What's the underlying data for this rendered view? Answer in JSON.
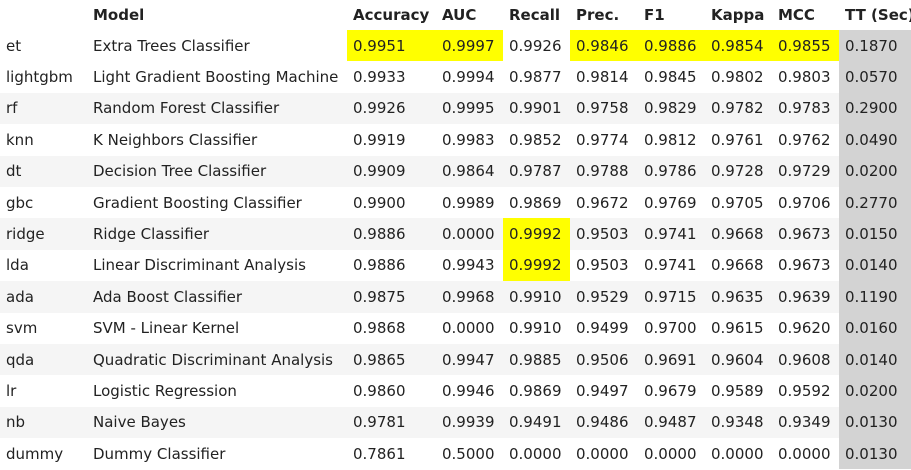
{
  "headers": [
    "",
    "Model",
    "Accuracy",
    "AUC",
    "Recall",
    "Prec.",
    "F1",
    "Kappa",
    "MCC",
    "TT (Sec)"
  ],
  "rows": [
    {
      "id": "et",
      "model": "Extra Trees Classifier",
      "values": [
        "0.9951",
        "0.9997",
        "0.9926",
        "0.9846",
        "0.9886",
        "0.9854",
        "0.9855",
        "0.1870"
      ]
    },
    {
      "id": "lightgbm",
      "model": "Light Gradient Boosting Machine",
      "values": [
        "0.9933",
        "0.9994",
        "0.9877",
        "0.9814",
        "0.9845",
        "0.9802",
        "0.9803",
        "0.0570"
      ]
    },
    {
      "id": "rf",
      "model": "Random Forest Classifier",
      "values": [
        "0.9926",
        "0.9995",
        "0.9901",
        "0.9758",
        "0.9829",
        "0.9782",
        "0.9783",
        "0.2900"
      ]
    },
    {
      "id": "knn",
      "model": "K Neighbors Classifier",
      "values": [
        "0.9919",
        "0.9983",
        "0.9852",
        "0.9774",
        "0.9812",
        "0.9761",
        "0.9762",
        "0.0490"
      ]
    },
    {
      "id": "dt",
      "model": "Decision Tree Classifier",
      "values": [
        "0.9909",
        "0.9864",
        "0.9787",
        "0.9788",
        "0.9786",
        "0.9728",
        "0.9729",
        "0.0200"
      ]
    },
    {
      "id": "gbc",
      "model": "Gradient Boosting Classifier",
      "values": [
        "0.9900",
        "0.9989",
        "0.9869",
        "0.9672",
        "0.9769",
        "0.9705",
        "0.9706",
        "0.2770"
      ]
    },
    {
      "id": "ridge",
      "model": "Ridge Classifier",
      "values": [
        "0.9886",
        "0.0000",
        "0.9992",
        "0.9503",
        "0.9741",
        "0.9668",
        "0.9673",
        "0.0150"
      ]
    },
    {
      "id": "lda",
      "model": "Linear Discriminant Analysis",
      "values": [
        "0.9886",
        "0.9943",
        "0.9992",
        "0.9503",
        "0.9741",
        "0.9668",
        "0.9673",
        "0.0140"
      ]
    },
    {
      "id": "ada",
      "model": "Ada Boost Classifier",
      "values": [
        "0.9875",
        "0.9968",
        "0.9910",
        "0.9529",
        "0.9715",
        "0.9635",
        "0.9639",
        "0.1190"
      ]
    },
    {
      "id": "svm",
      "model": "SVM - Linear Kernel",
      "values": [
        "0.9868",
        "0.0000",
        "0.9910",
        "0.9499",
        "0.9700",
        "0.9615",
        "0.9620",
        "0.0160"
      ]
    },
    {
      "id": "qda",
      "model": "Quadratic Discriminant Analysis",
      "values": [
        "0.9865",
        "0.9947",
        "0.9885",
        "0.9506",
        "0.9691",
        "0.9604",
        "0.9608",
        "0.0140"
      ]
    },
    {
      "id": "lr",
      "model": "Logistic Regression",
      "values": [
        "0.9860",
        "0.9946",
        "0.9869",
        "0.9497",
        "0.9679",
        "0.9589",
        "0.9592",
        "0.0200"
      ]
    },
    {
      "id": "nb",
      "model": "Naive Bayes",
      "values": [
        "0.9781",
        "0.9939",
        "0.9491",
        "0.9486",
        "0.9487",
        "0.9348",
        "0.9349",
        "0.0130"
      ]
    },
    {
      "id": "dummy",
      "model": "Dummy Classifier",
      "values": [
        "0.7861",
        "0.5000",
        "0.0000",
        "0.0000",
        "0.0000",
        "0.0000",
        "0.0000",
        "0.0130"
      ]
    }
  ],
  "highlight": [
    [
      0,
      0
    ],
    [
      0,
      1
    ],
    [
      0,
      3
    ],
    [
      0,
      4
    ],
    [
      0,
      5
    ],
    [
      0,
      6
    ],
    [
      6,
      2
    ],
    [
      7,
      2
    ]
  ],
  "colors": {
    "highlight": "#ffff00",
    "tt_column": "#d3d3d3",
    "stripe": "#f5f5f5"
  }
}
